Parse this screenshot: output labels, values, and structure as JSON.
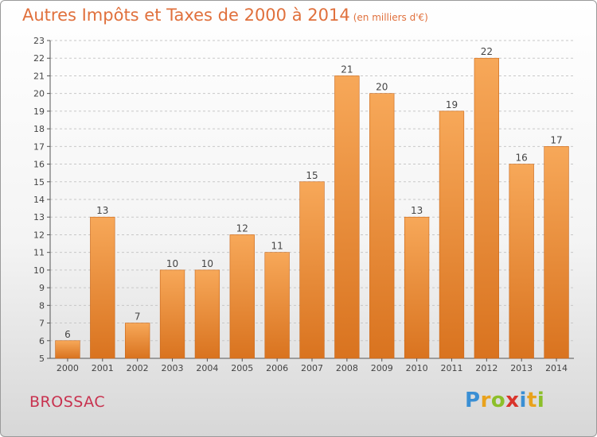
{
  "title": {
    "main": "Autres Impôts et Taxes de 2000 à 2014",
    "unit": "(en milliers d'€)"
  },
  "commune": "BROSSAC",
  "logo": {
    "text": "Proxiti",
    "letters": [
      {
        "ch": "P",
        "color": "#3a8fd4"
      },
      {
        "ch": "r",
        "color": "#e9a21c"
      },
      {
        "ch": "o",
        "color": "#8cbf2a"
      },
      {
        "ch": "x",
        "color": "#d9342b"
      },
      {
        "ch": "i",
        "color": "#3a8fd4"
      },
      {
        "ch": "t",
        "color": "#e9a21c"
      },
      {
        "ch": "i",
        "color": "#8cbf2a"
      }
    ]
  },
  "colors": {
    "bar_top": "#f7a859",
    "bar_bottom": "#d9731f",
    "grid": "#c8c8c8",
    "axis": "#555555",
    "text": "#444444"
  },
  "chart_data": {
    "type": "bar",
    "categories": [
      "2000",
      "2001",
      "2002",
      "2003",
      "2004",
      "2005",
      "2006",
      "2007",
      "2008",
      "2009",
      "2010",
      "2011",
      "2012",
      "2013",
      "2014"
    ],
    "values": [
      6,
      13,
      7,
      10,
      10,
      12,
      11,
      15,
      21,
      20,
      13,
      19,
      22,
      16,
      17
    ],
    "title": "Autres Impôts et Taxes de 2000 à 2014",
    "subtitle": "(en milliers d'€)",
    "xlabel": "",
    "ylabel": "",
    "ylim": [
      5,
      23
    ],
    "yticks": [
      5,
      6,
      7,
      8,
      9,
      10,
      11,
      12,
      13,
      14,
      15,
      16,
      17,
      18,
      19,
      20,
      21,
      22,
      23
    ],
    "grid": "horizontal dashed",
    "data_labels": true
  }
}
